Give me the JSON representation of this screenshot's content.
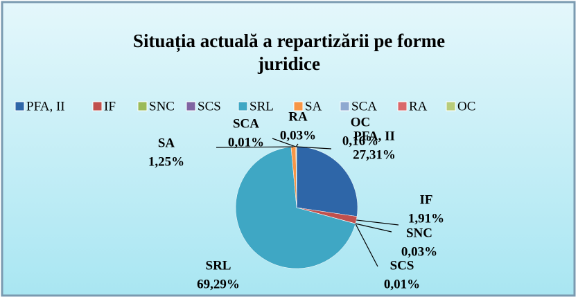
{
  "chart_data": {
    "type": "pie",
    "title": "Situația actuală a repartizării pe forme juridice",
    "categories": [
      "PFA, II",
      "IF",
      "SNC",
      "SCS",
      "SRL",
      "SA",
      "SCA",
      "RA",
      "OC"
    ],
    "values": [
      27.31,
      1.91,
      0.03,
      0.01,
      69.29,
      1.25,
      0.01,
      0.03,
      0.16
    ],
    "value_labels": [
      "27,31%",
      "1,91%",
      "0,03%",
      "0,01%",
      "69,29%",
      "1,25%",
      "0,01%",
      "0,03%",
      "0,16%"
    ],
    "colors": [
      "#2e66a8",
      "#c0504d",
      "#9bbb59",
      "#8064a2",
      "#3fa7c4",
      "#f79646",
      "#8fa8d0",
      "#d9676a",
      "#b8cc7a"
    ],
    "legend": "top"
  }
}
